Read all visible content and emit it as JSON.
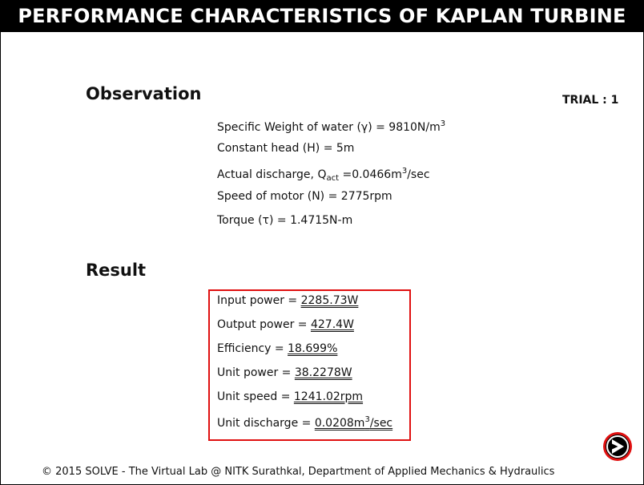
{
  "title": "PERFORMANCE CHARACTERISTICS OF KAPLAN TURBINE",
  "observation": {
    "heading": "Observation",
    "trial_label": "TRIAL : 1",
    "specific_weight": {
      "label": "Specific Weight of water (γ) = ",
      "value": "9810N/m",
      "sup": "3"
    },
    "constant_head": {
      "label": "Constant head (H) = ",
      "value": "5m"
    },
    "actual_discharge": {
      "label": "Actual discharge, Q",
      "sub": "act",
      "eq": " =",
      "value": "0.0466m",
      "sup": "3",
      "unit": "/sec"
    },
    "speed": {
      "label": "Speed of motor (N) = ",
      "value": "2775rpm"
    },
    "torque": {
      "label": "Torque (τ) = ",
      "value": "1.4715N-m"
    }
  },
  "result": {
    "heading": "Result",
    "input_power": {
      "label": "Input power = ",
      "value": "2285.73W"
    },
    "output_power": {
      "label": "Output power = ",
      "value": "427.4W"
    },
    "efficiency": {
      "label": "Efficiency = ",
      "value": "18.699%"
    },
    "unit_power": {
      "label": "Unit power = ",
      "value": "38.2278W"
    },
    "unit_speed": {
      "label": "Unit speed = ",
      "value": "1241.02rpm"
    },
    "unit_discharge": {
      "label": "Unit discharge = ",
      "value": "0.0208m",
      "sup": "3",
      "unit": "/sec"
    }
  },
  "footer": "© 2015 SOLVE - The Virtual Lab @ NITK Surathkal, Department of Applied Mechanics & Hydraulics",
  "next_button": {
    "icon": "arrow-right-icon"
  },
  "colors": {
    "title_bg": "#000000",
    "title_fg": "#ffffff",
    "result_border": "#e01010"
  }
}
